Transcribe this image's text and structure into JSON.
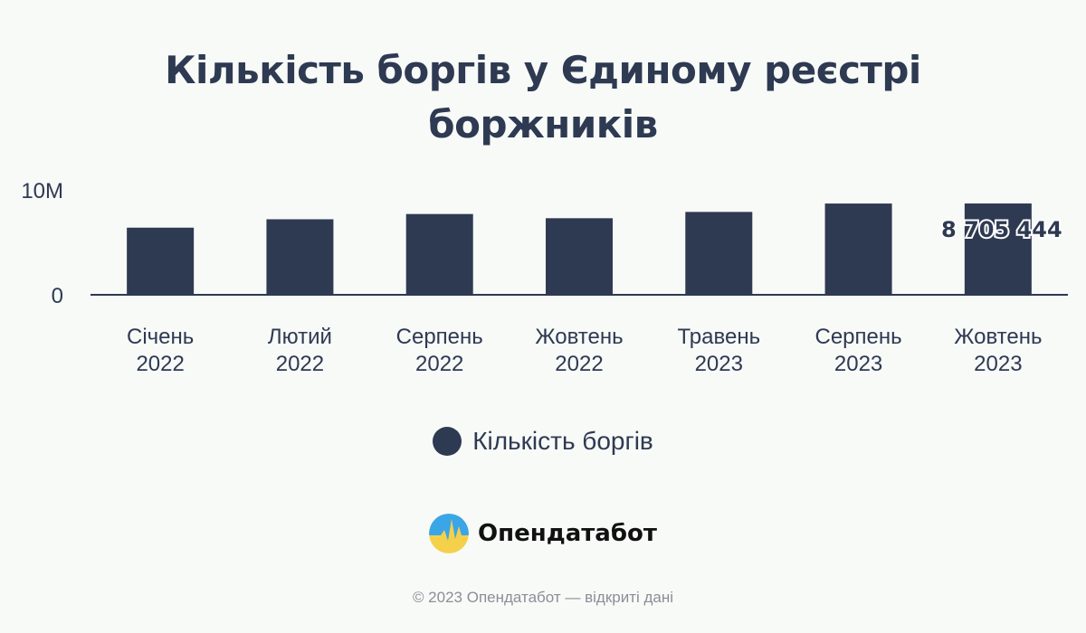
{
  "title_lines": [
    "Кількість боргів у Єдиному реєстрі",
    "боржників"
  ],
  "chart_data": {
    "type": "bar",
    "categories": [
      [
        "Січень",
        "2022"
      ],
      [
        "Лютий",
        "2022"
      ],
      [
        "Серпень",
        "2022"
      ],
      [
        "Жовтень",
        "2022"
      ],
      [
        "Травень",
        "2023"
      ],
      [
        "Серпень",
        "2023"
      ],
      [
        "Жовтень",
        "2023"
      ]
    ],
    "series": [
      {
        "name": "Кількість боргів",
        "values": [
          6400000,
          7200000,
          7700000,
          7300000,
          7900000,
          8700000,
          8705444
        ],
        "color": "#2e3a52"
      }
    ],
    "ylim": [
      0,
      10000000
    ],
    "y_ticks": [
      {
        "value": 0,
        "label": "0"
      },
      {
        "value": 10000000,
        "label": "10M"
      }
    ],
    "data_labels": [
      {
        "index": 6,
        "text": "8 705 444"
      }
    ],
    "grid": false,
    "legend_position": "bottom"
  },
  "legend": {
    "label": "Кількість боргів"
  },
  "brand": {
    "name": "Опендатабот",
    "icon": "opendatabot-logo-icon"
  },
  "footer": {
    "text": "© 2023 Опендатабот — відкриті дані"
  }
}
